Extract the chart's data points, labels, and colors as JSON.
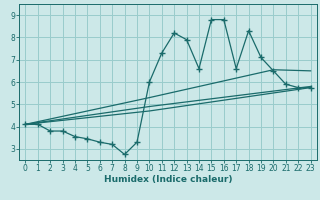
{
  "xlabel": "Humidex (Indice chaleur)",
  "ylabel": "",
  "bg_color": "#cce8e8",
  "grid_color": "#99cccc",
  "line_color": "#1a6b6b",
  "xlim": [
    -0.5,
    23.5
  ],
  "ylim": [
    2.5,
    9.5
  ],
  "xticks": [
    0,
    1,
    2,
    3,
    4,
    5,
    6,
    7,
    8,
    9,
    10,
    11,
    12,
    13,
    14,
    15,
    16,
    17,
    18,
    19,
    20,
    21,
    22,
    23
  ],
  "yticks": [
    3,
    4,
    5,
    6,
    7,
    8,
    9
  ],
  "line1_x": [
    0,
    1,
    2,
    3,
    4,
    5,
    6,
    7,
    8,
    9,
    10,
    11,
    12,
    13,
    14,
    15,
    16,
    17,
    18,
    19,
    20,
    21,
    22,
    23
  ],
  "line1_y": [
    4.1,
    4.1,
    3.8,
    3.8,
    3.55,
    3.45,
    3.3,
    3.2,
    2.75,
    3.3,
    6.0,
    7.3,
    8.2,
    7.9,
    6.6,
    8.8,
    8.8,
    6.6,
    8.3,
    7.1,
    6.5,
    5.9,
    5.75,
    5.75
  ],
  "line2_x": [
    0,
    10,
    23
  ],
  "line2_y": [
    4.1,
    4.7,
    5.75
  ],
  "line3_x": [
    0,
    10,
    23
  ],
  "line3_y": [
    4.1,
    4.9,
    5.8
  ],
  "line4_x": [
    0,
    10,
    20,
    23
  ],
  "line4_y": [
    4.1,
    5.3,
    6.55,
    6.5
  ]
}
